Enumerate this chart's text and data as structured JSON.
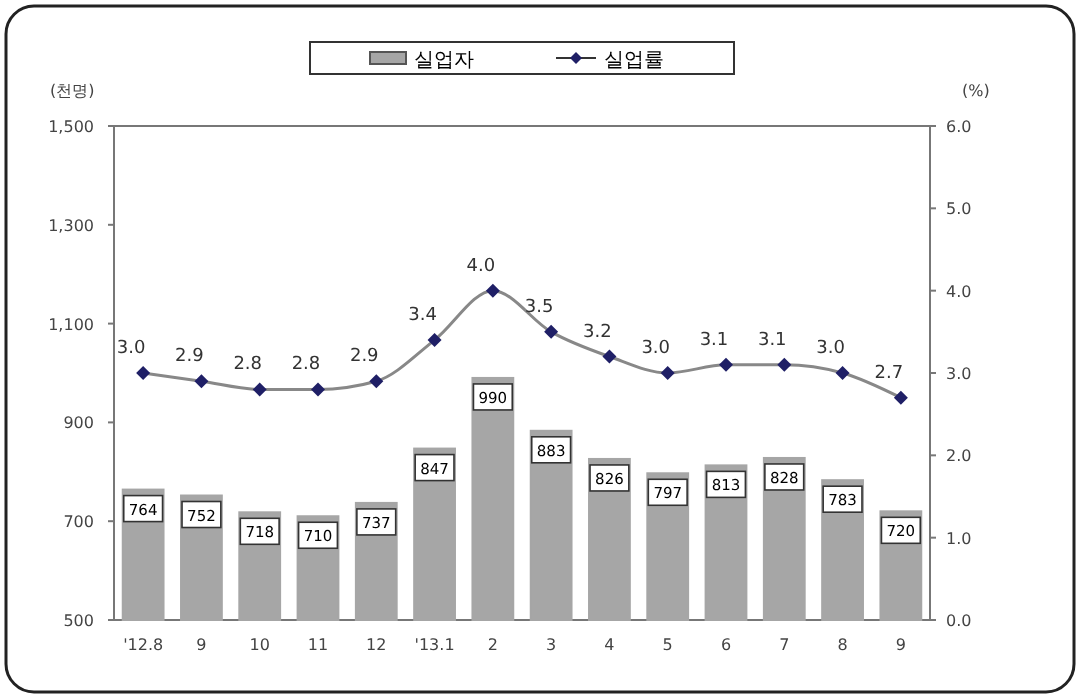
{
  "chart_data": {
    "type": "bar",
    "ylabel": "(천명)",
    "y2label": "(%)",
    "categories": [
      "'12.8",
      "9",
      "10",
      "11",
      "12",
      "'13.1",
      "2",
      "3",
      "4",
      "5",
      "6",
      "7",
      "8",
      "9"
    ],
    "series": [
      {
        "name": "실업자",
        "color": "#a6a6a6",
        "values": [
          764,
          752,
          718,
          710,
          737,
          847,
          990,
          883,
          826,
          797,
          813,
          828,
          783,
          720
        ],
        "value_labels": [
          "764",
          "752",
          "718",
          "710",
          "737",
          "847",
          "990",
          "883",
          "826",
          "797",
          "813",
          "828",
          "783",
          "720"
        ]
      },
      {
        "name": "실업률",
        "type": "line",
        "axis": "y2",
        "color": "#1f1f66",
        "marker": "diamond",
        "values": [
          3.0,
          2.9,
          2.8,
          2.8,
          2.9,
          3.4,
          4.0,
          3.5,
          3.2,
          3.0,
          3.1,
          3.1,
          3.0,
          2.7
        ],
        "value_labels": [
          "3.0",
          "2.9",
          "2.8",
          "2.8",
          "2.9",
          "3.4",
          "4.0",
          "3.5",
          "3.2",
          "3.0",
          "3.1",
          "3.1",
          "3.0",
          "2.7"
        ]
      }
    ],
    "ylim": [
      500,
      1500
    ],
    "yticks": [
      500,
      700,
      900,
      {
        "value": 1100,
        "label": "1,100"
      },
      {
        "value": 1300,
        "label": "1,300"
      },
      {
        "value": 1500,
        "label": "1,500"
      }
    ],
    "y2lim": [
      0,
      6
    ],
    "y2ticks": [
      {
        "value": 0,
        "label": "0.0"
      },
      {
        "value": 1,
        "label": "1.0"
      },
      {
        "value": 2,
        "label": "2.0"
      },
      {
        "value": 3,
        "label": "3.0"
      },
      {
        "value": 4,
        "label": "4.0"
      },
      {
        "value": 5,
        "label": "5.0"
      },
      {
        "value": 6,
        "label": "6.0"
      }
    ],
    "legend": "top",
    "grid": false
  }
}
